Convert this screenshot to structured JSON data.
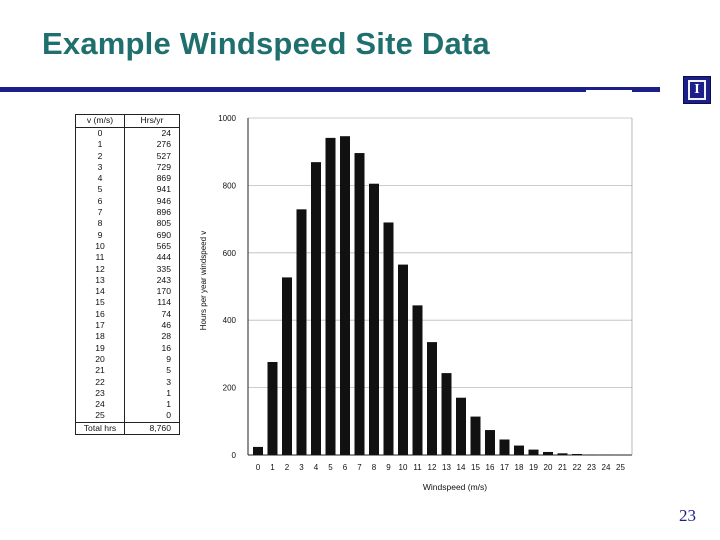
{
  "slide": {
    "title": "Example Windspeed Site Data",
    "page_number": "23",
    "logo_glyph": "I"
  },
  "colors": {
    "title": "#1f6f6f",
    "rule": "#1c1f8a",
    "bars": "#111111"
  },
  "table": {
    "headers": [
      "v (m/s)",
      "Hrs/yr"
    ],
    "rows": [
      [
        "0",
        "24"
      ],
      [
        "1",
        "276"
      ],
      [
        "2",
        "527"
      ],
      [
        "3",
        "729"
      ],
      [
        "4",
        "869"
      ],
      [
        "5",
        "941"
      ],
      [
        "6",
        "946"
      ],
      [
        "7",
        "896"
      ],
      [
        "8",
        "805"
      ],
      [
        "9",
        "690"
      ],
      [
        "10",
        "565"
      ],
      [
        "11",
        "444"
      ],
      [
        "12",
        "335"
      ],
      [
        "13",
        "243"
      ],
      [
        "14",
        "170"
      ],
      [
        "15",
        "114"
      ],
      [
        "16",
        "74"
      ],
      [
        "17",
        "46"
      ],
      [
        "18",
        "28"
      ],
      [
        "19",
        "16"
      ],
      [
        "20",
        "9"
      ],
      [
        "21",
        "5"
      ],
      [
        "22",
        "3"
      ],
      [
        "23",
        "1"
      ],
      [
        "24",
        "1"
      ],
      [
        "25",
        "0"
      ]
    ],
    "total_label": "Total hrs",
    "total_value": "8,760"
  },
  "chart_data": {
    "type": "bar",
    "categories": [
      "0",
      "1",
      "2",
      "3",
      "4",
      "5",
      "6",
      "7",
      "8",
      "9",
      "10",
      "11",
      "12",
      "13",
      "14",
      "15",
      "16",
      "17",
      "18",
      "19",
      "20",
      "21",
      "22",
      "23",
      "24",
      "25"
    ],
    "values": [
      24,
      276,
      527,
      729,
      869,
      941,
      946,
      896,
      805,
      690,
      565,
      444,
      335,
      243,
      170,
      114,
      74,
      46,
      28,
      16,
      9,
      5,
      3,
      1,
      1,
      0
    ],
    "xlabel": "Windspeed (m/s)",
    "ylabel": "Hours per year windspeed v",
    "ylim": [
      0,
      1000
    ],
    "yticks": [
      0,
      200,
      400,
      600,
      800,
      1000
    ],
    "grid": true
  }
}
